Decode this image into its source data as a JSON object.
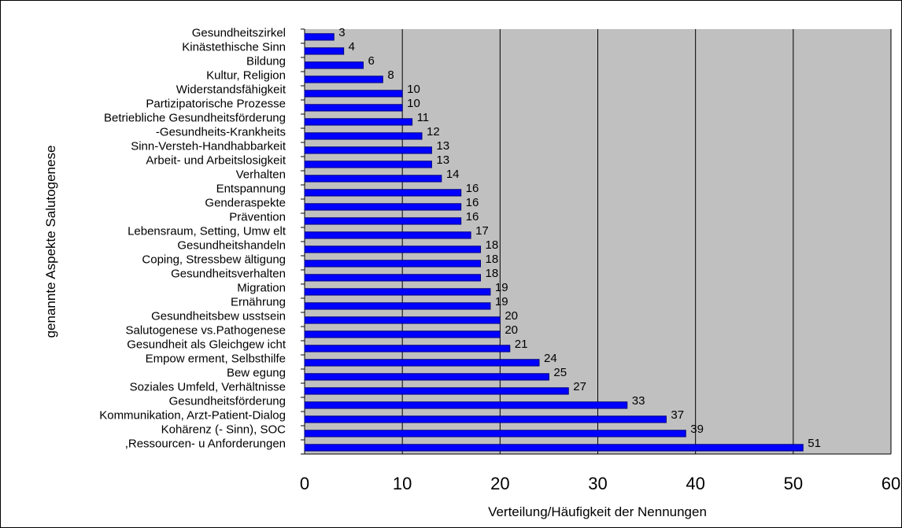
{
  "chart_data": {
    "type": "bar",
    "orientation": "horizontal",
    "categories": [
      "Gesundheitszirkel",
      "Kinästethische Sinn",
      "Bildung",
      "Kultur, Religion",
      "Widerstandsfähigkeit",
      "Partizipatorische Prozesse",
      "Betriebliche Gesundheitsförderung",
      "-Gesundheits-Krankheits",
      "Sinn-Versteh-Handhabbarkeit",
      "Arbeit- und Arbeitslosigkeit",
      "Verhalten",
      "Entspannung",
      "Genderaspekte",
      "Prävention",
      "Lebensraum, Setting,  Umw elt",
      "Gesundheitshandeln",
      "Coping, Stressbew ältigung",
      "Gesundheitsverhalten",
      "Migration",
      "Ernährung",
      "Gesundheitsbew usstsein",
      "Salutogenese vs.Pathogenese",
      "Gesundheit als Gleichgew icht",
      "Empow erment, Selbsthilfe",
      "Bew egung",
      "Soziales Umfeld, Verhältnisse",
      "Gesundheitsförderung",
      "Kommunikation, Arzt-Patient-Dialog",
      "Kohärenz (- Sinn), SOC",
      ",Ressourcen- u Anforderungen"
    ],
    "values": [
      3,
      4,
      6,
      8,
      10,
      10,
      11,
      12,
      13,
      13,
      14,
      16,
      16,
      16,
      17,
      18,
      18,
      18,
      19,
      19,
      20,
      20,
      21,
      24,
      25,
      27,
      33,
      37,
      39,
      51
    ],
    "data_labels": [
      "3",
      "4",
      "6",
      "8",
      "10",
      "10",
      "11",
      "12",
      "13",
      "13",
      "14",
      "16",
      "16",
      "16",
      "17",
      "18",
      "18",
      "18",
      "19",
      "19",
      "20",
      "20",
      "21",
      "24",
      "25",
      "27",
      "33",
      "37",
      "39",
      "51"
    ],
    "xlabel": "Verteilung/Häufigkeit der Nennungen",
    "ylabel": "genannte Aspekte Salutogenese",
    "xlim": [
      0,
      60
    ],
    "xticks": [
      0,
      10,
      20,
      30,
      40,
      50,
      60
    ],
    "xtick_labels": [
      "0",
      "10",
      "20",
      "30",
      "40",
      "50",
      "60"
    ],
    "grid": "vertical major gridlines",
    "legend": "none",
    "colors": {
      "bar_fill": "#0000ff",
      "bar_outline": "#000080",
      "plot_background": "#c0c0c0",
      "gridline": "#000000"
    }
  }
}
